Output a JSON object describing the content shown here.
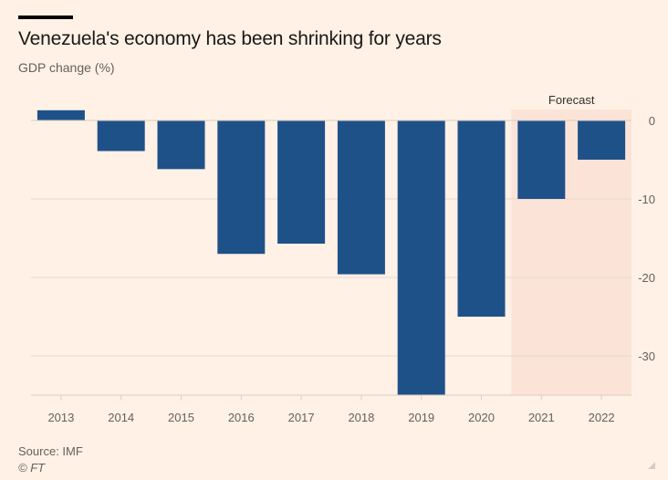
{
  "header": {
    "title": "Venezuela's economy has been shrinking for years",
    "subtitle": "GDP change (%)"
  },
  "footer": {
    "source": "Source: IMF",
    "copyright": "© FT"
  },
  "colors": {
    "bar": "#1f5189",
    "forecast_band": "#fbe4d7",
    "background": "#fff1e5",
    "grid": "#e6d9ce"
  },
  "chart_data": {
    "type": "bar",
    "title": "Venezuela's economy has been shrinking for years",
    "ylabel": "GDP change (%)",
    "xlabel": "",
    "categories": [
      "2013",
      "2014",
      "2015",
      "2016",
      "2017",
      "2018",
      "2019",
      "2020",
      "2021",
      "2022"
    ],
    "values": [
      1.3,
      -3.9,
      -6.2,
      -17.0,
      -15.7,
      -19.6,
      -35.0,
      -25.0,
      -10.0,
      -5.0
    ],
    "ylim": [
      -35,
      1.5
    ],
    "yticks": [
      0,
      -10,
      -20,
      -30
    ],
    "ytick_labels": [
      "0",
      "-10",
      "-20",
      "-30"
    ],
    "grid": true,
    "annotations": [
      {
        "text": "Forecast",
        "applies_to": [
          "2021",
          "2022"
        ]
      }
    ],
    "note": "2019 bar extends beyond axis bottom (truncated)"
  }
}
